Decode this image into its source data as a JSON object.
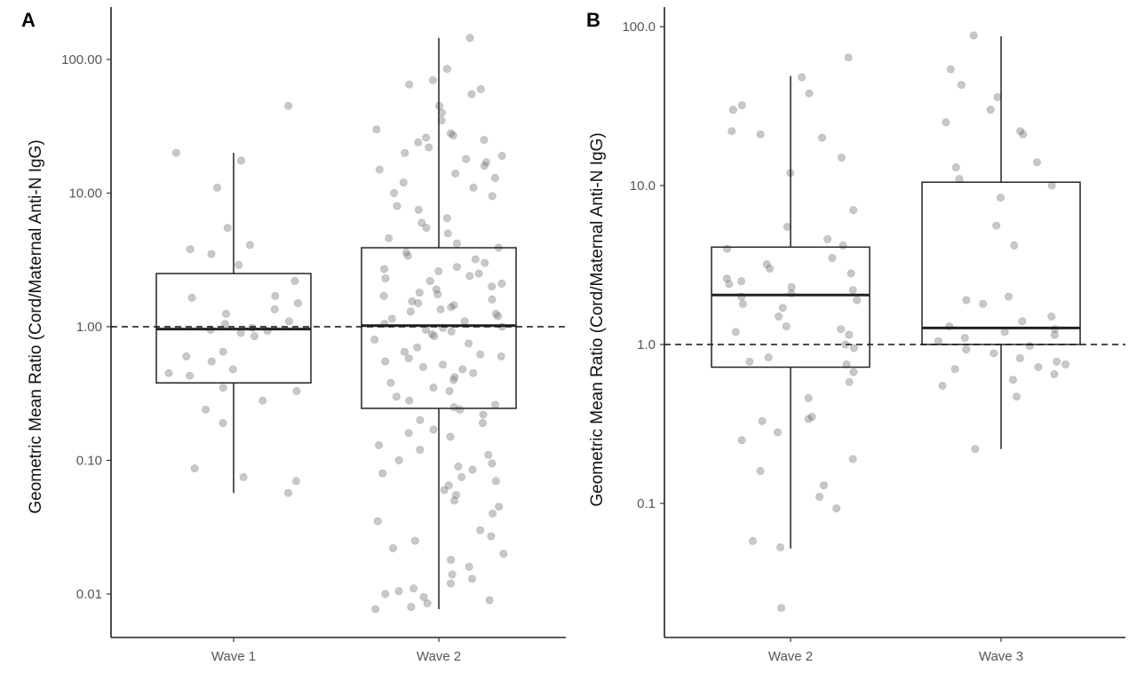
{
  "chart_data": [
    {
      "panel": "A",
      "type": "box",
      "scale": "log10",
      "ylabel": "Geometric Mean Ratio (Cord/Maternal Anti-N IgG)",
      "ylim": [
        0.0065,
        240
      ],
      "yticks": [
        {
          "value": 100,
          "label": "100.00"
        },
        {
          "value": 10,
          "label": "10.00"
        },
        {
          "value": 1,
          "label": "1.00"
        },
        {
          "value": 0.1,
          "label": "0.10"
        },
        {
          "value": 0.01,
          "label": "0.01"
        }
      ],
      "reference_line": 1,
      "categories": [
        "Wave 1",
        "Wave 2"
      ],
      "boxes": [
        {
          "category": "Wave 1",
          "whisker_low": 0.057,
          "q1": 0.38,
          "median": 0.96,
          "q3": 2.5,
          "whisker_high": 20.0
        },
        {
          "category": "Wave 2",
          "whisker_low": 0.0077,
          "q1": 0.245,
          "median": 1.02,
          "q3": 3.9,
          "whisker_high": 145.0
        }
      ],
      "points": {
        "Wave 1": [
          45,
          20,
          17.5,
          11,
          5.5,
          4.1,
          3.8,
          3.5,
          2.9,
          2.2,
          1.7,
          1.65,
          1.5,
          1.35,
          1.25,
          1.1,
          1.05,
          0.98,
          0.95,
          0.93,
          0.9,
          0.85,
          0.65,
          0.6,
          0.55,
          0.48,
          0.45,
          0.43,
          0.35,
          0.33,
          0.28,
          0.24,
          0.19,
          0.087,
          0.075,
          0.07,
          0.057
        ],
        "Wave 2": [
          145,
          85,
          70,
          65,
          60,
          55,
          45,
          40,
          35,
          30,
          28,
          27,
          26,
          25,
          24,
          22,
          20,
          19,
          18,
          17,
          16,
          15,
          14,
          13,
          12,
          11,
          10,
          9.5,
          8,
          7.5,
          6.5,
          6,
          5.5,
          5,
          4.6,
          4.2,
          3.9,
          3.6,
          3.4,
          3.2,
          3,
          2.8,
          2.7,
          2.6,
          2.5,
          2.4,
          2.3,
          2.2,
          2.1,
          2,
          1.9,
          1.8,
          1.75,
          1.7,
          1.6,
          1.55,
          1.5,
          1.45,
          1.4,
          1.35,
          1.3,
          1.25,
          1.2,
          1.15,
          1.1,
          1.05,
          1,
          0.98,
          0.95,
          0.92,
          0.88,
          0.85,
          0.8,
          0.75,
          0.7,
          0.65,
          0.62,
          0.6,
          0.58,
          0.55,
          0.52,
          0.5,
          0.48,
          0.45,
          0.42,
          0.4,
          0.38,
          0.35,
          0.33,
          0.3,
          0.28,
          0.26,
          0.25,
          0.24,
          0.22,
          0.2,
          0.19,
          0.17,
          0.16,
          0.15,
          0.13,
          0.12,
          0.11,
          0.1,
          0.095,
          0.09,
          0.085,
          0.08,
          0.075,
          0.07,
          0.065,
          0.06,
          0.055,
          0.05,
          0.045,
          0.04,
          0.035,
          0.03,
          0.027,
          0.025,
          0.022,
          0.02,
          0.018,
          0.016,
          0.014,
          0.013,
          0.012,
          0.011,
          0.0105,
          0.01,
          0.0095,
          0.009,
          0.0085,
          0.008,
          0.0077
        ]
      }
    },
    {
      "panel": "B",
      "type": "box",
      "scale": "log10",
      "ylabel": "Geometric Mean Ratio (Cord/Maternal Anti-N IgG)",
      "ylim": [
        0.018,
        130
      ],
      "yticks": [
        {
          "value": 100,
          "label": "100.0"
        },
        {
          "value": 10,
          "label": "10.0"
        },
        {
          "value": 1,
          "label": "1.0"
        },
        {
          "value": 0.1,
          "label": "0.1"
        }
      ],
      "reference_line": 1,
      "categories": [
        "Wave 2",
        "Wave 3"
      ],
      "boxes": [
        {
          "category": "Wave 2",
          "whisker_low": 0.052,
          "q1": 0.72,
          "median": 2.05,
          "q3": 4.1,
          "whisker_high": 49.0
        },
        {
          "category": "Wave 3",
          "whisker_low": 0.22,
          "q1": 1.0,
          "median": 1.27,
          "q3": 10.5,
          "whisker_high": 87.0
        }
      ],
      "points": {
        "Wave 2": [
          64,
          48,
          38,
          32,
          30,
          22,
          21,
          20,
          15,
          12,
          7,
          5.5,
          4.6,
          4.2,
          4,
          3.5,
          3.2,
          3,
          2.8,
          2.6,
          2.5,
          2.4,
          2.3,
          2.2,
          2.1,
          2,
          1.9,
          1.8,
          1.7,
          1.5,
          1.3,
          1.25,
          1.2,
          1.15,
          1,
          0.95,
          0.83,
          0.78,
          0.75,
          0.67,
          0.58,
          0.46,
          0.35,
          0.34,
          0.33,
          0.28,
          0.25,
          0.19,
          0.16,
          0.13,
          0.11,
          0.093,
          0.058,
          0.053,
          0.022
        ],
        "Wave 3": [
          88,
          54,
          43,
          36,
          30,
          25,
          22,
          21,
          14,
          13,
          11,
          10,
          8.4,
          5.6,
          4.2,
          2,
          1.9,
          1.8,
          1.5,
          1.4,
          1.3,
          1.25,
          1.2,
          1.15,
          1.1,
          1.05,
          0.98,
          0.93,
          0.88,
          0.82,
          0.78,
          0.75,
          0.72,
          0.7,
          0.65,
          0.6,
          0.55,
          0.47,
          0.22
        ]
      }
    }
  ]
}
